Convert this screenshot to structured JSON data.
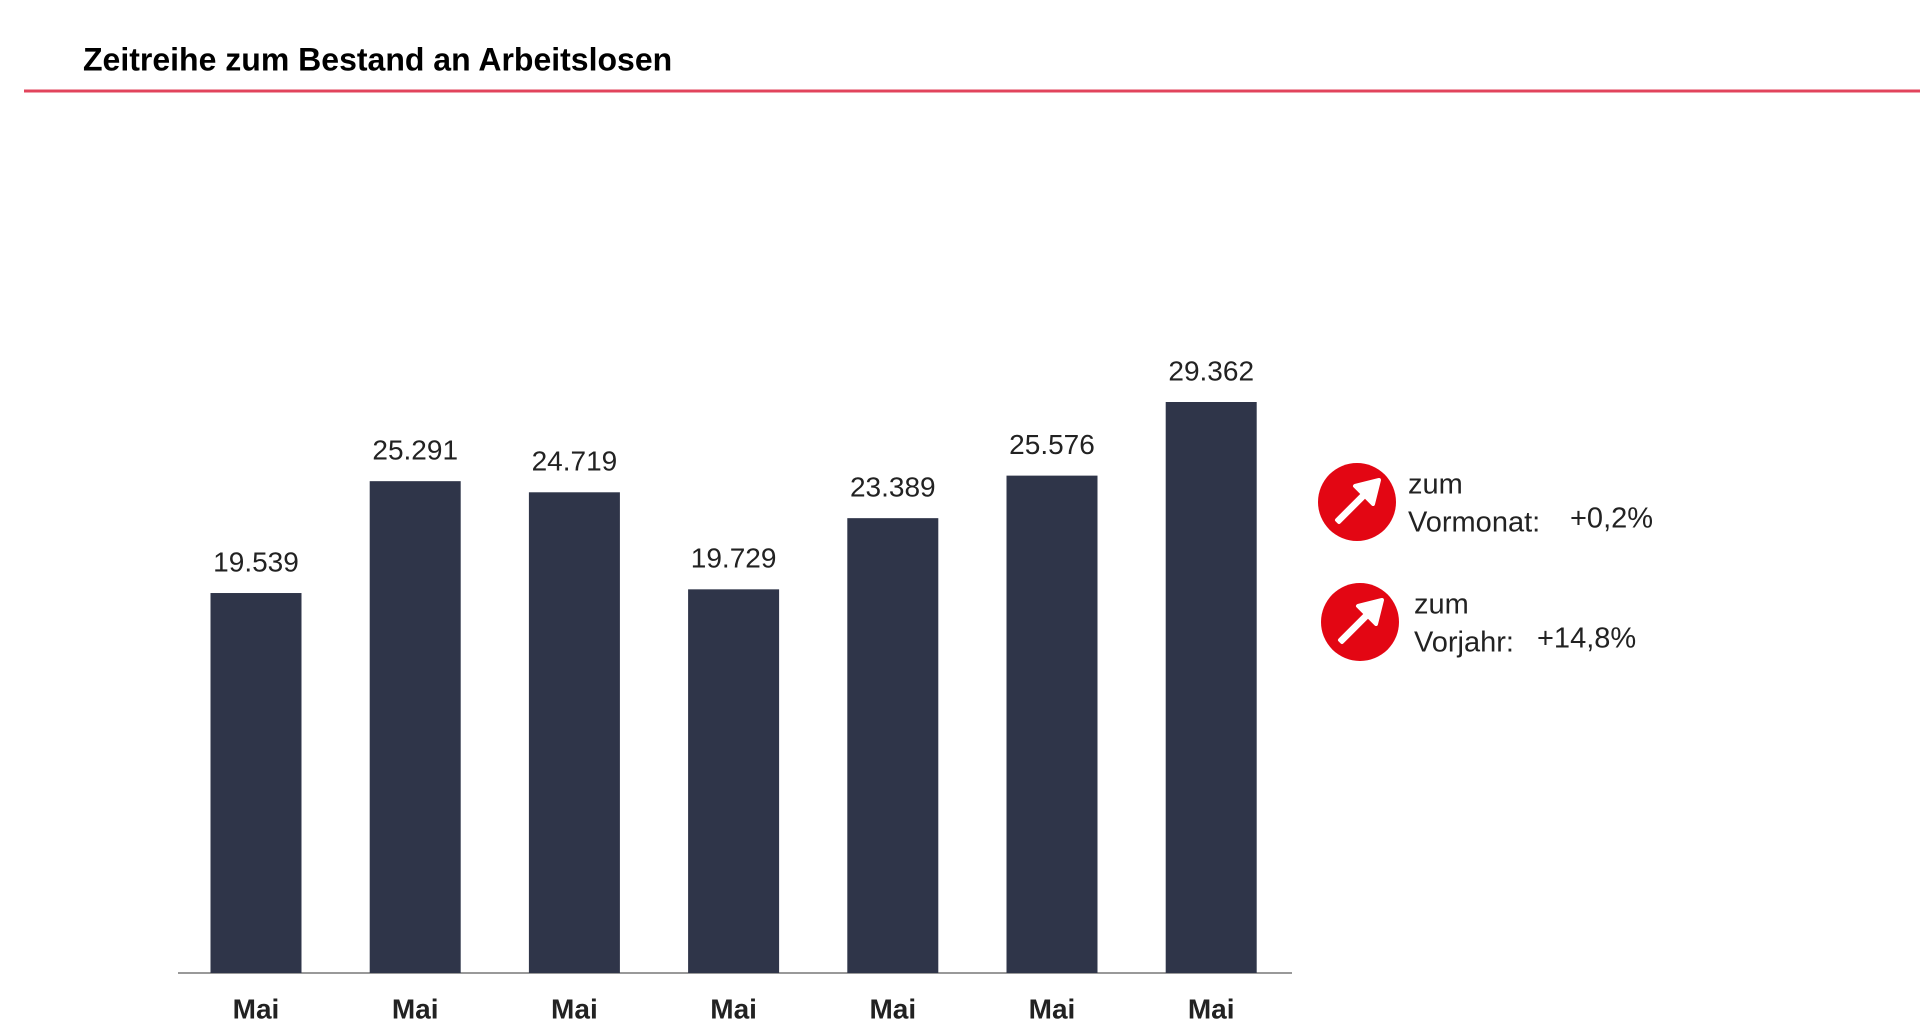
{
  "chart_data": {
    "type": "bar",
    "subtitle": "Zeitreihe zum Bestand an Arbeitslosen",
    "categories": [
      "Mai",
      "Mai",
      "Mai",
      "Mai",
      "Mai",
      "Mai",
      "Mai"
    ],
    "values": [
      19539,
      25291,
      24719,
      19729,
      23389,
      25576,
      29362
    ],
    "value_labels": [
      "19.539",
      "25.291",
      "24.719",
      "19.729",
      "23.389",
      "25.576",
      "29.362"
    ],
    "color": "#2f3549",
    "rule_color": "#e2445c",
    "annotations": [
      {
        "line1": "zum",
        "line2": "Vormonat:",
        "change": "+0,2%"
      },
      {
        "line1": "zum",
        "line2": "Vorjahr:",
        "change": "+14,8%"
      }
    ],
    "icon_color": "#e30613"
  }
}
